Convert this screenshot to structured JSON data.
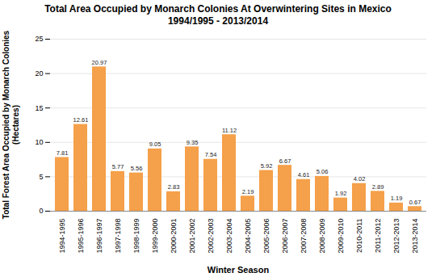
{
  "chart_data": {
    "type": "bar",
    "title": "Total Area Occupied by Monarch Colonies At Overwintering Sites in Mexico",
    "subtitle": "1994/1995 - 2013/2014",
    "xlabel": "Winter Season",
    "ylabel": "Total Forest Area Occupied by Monarch Colonies\n(Hectares)",
    "categories": [
      "1994-1995",
      "1995-1996",
      "1996-1997",
      "1997-1998",
      "1998-1999",
      "1999-2000",
      "2000-2001",
      "2001-2002",
      "2002-2003",
      "2003-2004",
      "2004-2005",
      "2005-2006",
      "2006-2007",
      "2007-2008",
      "2008-2009",
      "2009-2010",
      "2010-2011",
      "2011-2012",
      "2012-2013",
      "2013-2014"
    ],
    "values": [
      7.81,
      12.61,
      20.97,
      5.77,
      5.56,
      9.05,
      2.83,
      9.35,
      7.54,
      11.12,
      2.19,
      5.92,
      6.67,
      4.61,
      5.06,
      1.92,
      4.02,
      2.89,
      1.19,
      0.67
    ],
    "color": "#F5A04A",
    "ylim": [
      0,
      25
    ],
    "yticks": [
      0,
      5,
      10,
      15,
      20,
      25
    ],
    "grid": true,
    "data_labels": true
  }
}
